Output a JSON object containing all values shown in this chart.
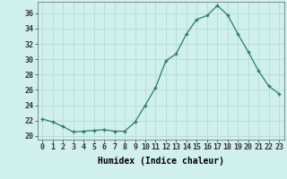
{
  "x": [
    0,
    1,
    2,
    3,
    4,
    5,
    6,
    7,
    8,
    9,
    10,
    11,
    12,
    13,
    14,
    15,
    16,
    17,
    18,
    19,
    20,
    21,
    22,
    23
  ],
  "y": [
    22.2,
    21.8,
    21.2,
    20.5,
    20.6,
    20.7,
    20.8,
    20.6,
    20.6,
    21.8,
    24.0,
    26.3,
    29.8,
    30.7,
    33.3,
    35.2,
    35.7,
    37.0,
    35.8,
    33.3,
    31.0,
    28.5,
    26.5,
    25.5
  ],
  "xlabel": "Humidex (Indice chaleur)",
  "xlim": [
    -0.5,
    23.5
  ],
  "ylim": [
    19.5,
    37.5
  ],
  "yticks": [
    20,
    22,
    24,
    26,
    28,
    30,
    32,
    34,
    36
  ],
  "xtick_labels": [
    "0",
    "1",
    "2",
    "3",
    "4",
    "5",
    "6",
    "7",
    "8",
    "9",
    "10",
    "11",
    "12",
    "13",
    "14",
    "15",
    "16",
    "17",
    "18",
    "19",
    "20",
    "21",
    "22",
    "23"
  ],
  "line_color": "#2d7a6e",
  "marker_color": "#2d7a6e",
  "bg_color": "#cff0ec",
  "grid_color": "#b0d8d3",
  "axis_fontsize": 7,
  "tick_fontsize": 6
}
